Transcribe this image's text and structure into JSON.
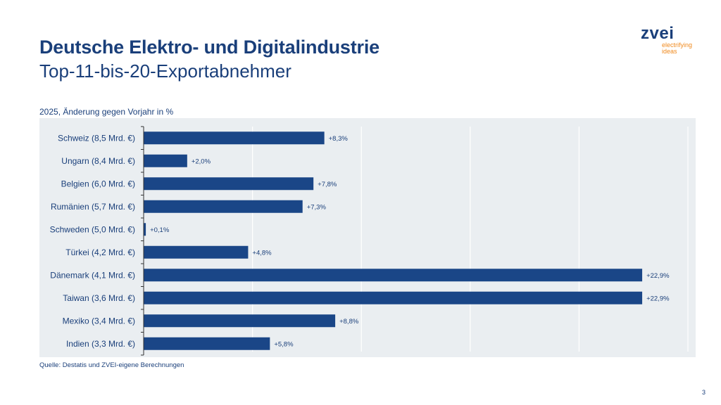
{
  "header": {
    "title": "Deutsche Elektro- und Digitalindustrie",
    "subtitle": "Top-11-bis-20-Exportabnehmer"
  },
  "logo": {
    "word": "zvei",
    "tagline_1": "electrifying",
    "tagline_2": "ideas"
  },
  "footer": {
    "source": "Quelle: Destatis und ZVEI-eigene Berechnungen",
    "page_number": "3"
  },
  "colors": {
    "bar": "#1a4687",
    "text": "#1a3f7a",
    "plot_background": "#eaeef1",
    "accent": "#f08a1e"
  },
  "chart_data": {
    "type": "bar",
    "orientation": "horizontal",
    "title": "2025, Änderung gegen Vorjahr in %",
    "categories": [
      "Schweiz (8,5 Mrd. €)",
      "Ungarn (8,4 Mrd. €)",
      "Belgien (6,0 Mrd. €)",
      "Rumänien (5,7 Mrd. €)",
      "Schweden (5,0 Mrd. €)",
      "Türkei (4,2 Mrd. €)",
      "Dänemark (4,1 Mrd. €)",
      "Taiwan (3,6 Mrd. €)",
      "Mexiko (3,4 Mrd. €)",
      "Indien (3,3 Mrd. €)"
    ],
    "values": [
      8.3,
      2.0,
      7.8,
      7.3,
      0.1,
      4.8,
      22.9,
      22.9,
      8.8,
      5.8
    ],
    "data_labels": [
      "+8,3%",
      "+2,0%",
      "+7,8%",
      "+7,3%",
      "+0,1%",
      "+4,8%",
      "+22,9%",
      "+22,9%",
      "+8,8%",
      "+5,8%"
    ],
    "xlim": [
      0,
      25
    ],
    "gridlines": [
      5,
      10,
      15,
      20,
      25
    ],
    "grid": true,
    "xlabel": "",
    "ylabel": ""
  }
}
